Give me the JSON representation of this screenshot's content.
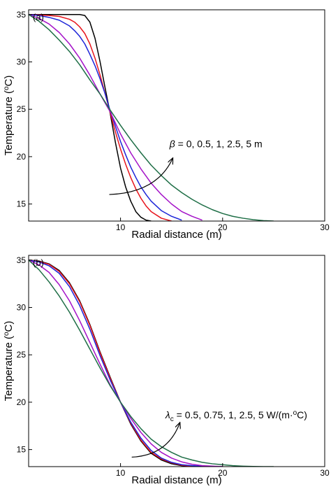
{
  "colors": {
    "black": "#000000",
    "red": "#e8141c",
    "blue": "#1c24d8",
    "magenta": "#a412c8",
    "green": "#1e6e46"
  },
  "chart_data": [
    {
      "type": "line",
      "panel_label": "(a)",
      "xlabel": "Radial distance (m)",
      "ylabel_main": "Temperature (",
      "ylabel_sup": "o",
      "ylabel_end": "C)",
      "xlim": [
        1,
        30
      ],
      "ylim": [
        13.2,
        35.5
      ],
      "xticks": [
        {
          "value": 10,
          "label": "10"
        },
        {
          "value": 20,
          "label": "20"
        },
        {
          "value": 30,
          "label": "30"
        }
      ],
      "yticks": [
        {
          "value": 15,
          "label": "15"
        },
        {
          "value": 20,
          "label": "20"
        },
        {
          "value": 25,
          "label": "25"
        },
        {
          "value": 30,
          "label": "30"
        },
        {
          "value": 35,
          "label": "35"
        }
      ],
      "grid": false,
      "annotation": {
        "symbol": "β",
        "text": " = 0, 0.5, 1, 2.5, 5 m",
        "x": 14.8,
        "y": 21.0,
        "arrow_from": [
          8.9,
          16.0
        ],
        "arrow_to": [
          15.1,
          19.8
        ]
      },
      "series": [
        {
          "color": "black",
          "x": [
            1,
            2,
            3,
            4,
            5,
            6,
            6.5,
            7,
            7.5,
            8,
            8.5,
            9,
            9.5,
            10,
            10.5,
            11,
            11.5,
            12,
            12.5,
            13
          ],
          "y": [
            35,
            35,
            35,
            35,
            35,
            35,
            34.9,
            34.2,
            32.5,
            30.0,
            27.2,
            24.5,
            21.5,
            18.8,
            16.8,
            15.3,
            14.2,
            13.6,
            13.3,
            13.2
          ]
        },
        {
          "color": "red",
          "x": [
            1,
            2,
            3,
            4,
            5,
            5.5,
            6,
            6.5,
            7,
            7.5,
            8,
            8.5,
            9,
            9.5,
            10,
            10.5,
            11,
            11.5,
            12,
            12.5,
            13,
            14,
            15
          ],
          "y": [
            35,
            34.95,
            34.9,
            34.8,
            34.5,
            34.2,
            33.7,
            33.0,
            31.9,
            30.4,
            28.6,
            26.6,
            24.6,
            22.6,
            20.8,
            19.2,
            17.8,
            16.6,
            15.6,
            14.8,
            14.2,
            13.5,
            13.2
          ]
        },
        {
          "color": "blue",
          "x": [
            1,
            2,
            3,
            4,
            5,
            5.5,
            6,
            6.5,
            7,
            7.5,
            8,
            8.5,
            9,
            9.5,
            10,
            10.5,
            11,
            11.5,
            12,
            12.5,
            13,
            14,
            15,
            16
          ],
          "y": [
            35,
            34.9,
            34.7,
            34.4,
            33.8,
            33.3,
            32.7,
            31.9,
            30.8,
            29.6,
            28.2,
            26.6,
            24.8,
            23.2,
            21.6,
            20.2,
            18.9,
            17.8,
            16.8,
            16.0,
            15.3,
            14.3,
            13.7,
            13.3
          ]
        },
        {
          "color": "magenta",
          "x": [
            1,
            2,
            3,
            4,
            5,
            6,
            7,
            8,
            9,
            10,
            11,
            12,
            13,
            14,
            15,
            16,
            17,
            18
          ],
          "y": [
            35,
            34.6,
            34.0,
            33.1,
            31.9,
            30.4,
            28.6,
            26.6,
            24.7,
            22.4,
            20.4,
            18.7,
            17.2,
            16.0,
            15.0,
            14.2,
            13.7,
            13.3
          ]
        },
        {
          "color": "green",
          "x": [
            1,
            2,
            3,
            4,
            5,
            6,
            7,
            8,
            9,
            10,
            11,
            12,
            13,
            14,
            15,
            16,
            17,
            18,
            19,
            20,
            21,
            22,
            23,
            24,
            25
          ],
          "y": [
            35,
            34.3,
            33.4,
            32.3,
            31.1,
            29.7,
            28.1,
            26.6,
            24.9,
            23.3,
            21.8,
            20.4,
            19.1,
            18.0,
            17.0,
            16.2,
            15.5,
            14.9,
            14.4,
            14.0,
            13.7,
            13.5,
            13.35,
            13.25,
            13.2
          ]
        }
      ]
    },
    {
      "type": "line",
      "panel_label": "(b)",
      "xlabel": "Radial distance (m)",
      "ylabel_main": "Temperature (",
      "ylabel_sup": "o",
      "ylabel_end": "C)",
      "xlim": [
        1,
        30
      ],
      "ylim": [
        13.2,
        35.5
      ],
      "xticks": [
        {
          "value": 10,
          "label": "10"
        },
        {
          "value": 20,
          "label": "20"
        },
        {
          "value": 30,
          "label": "30"
        }
      ],
      "yticks": [
        {
          "value": 15,
          "label": "15"
        },
        {
          "value": 20,
          "label": "20"
        },
        {
          "value": 25,
          "label": "25"
        },
        {
          "value": 30,
          "label": "30"
        },
        {
          "value": 35,
          "label": "35"
        }
      ],
      "grid": false,
      "annotation": {
        "symbol": "λ",
        "symbol_sub": "c",
        "text": " = 0.5, 0.75, 1, 2.5, 5 W/(m·",
        "text_sup": "o",
        "text_end": "C)",
        "x": 14.4,
        "y": 18.3,
        "arrow_from": [
          11.1,
          14.2
        ],
        "arrow_to": [
          15.8,
          17.8
        ]
      },
      "series": [
        {
          "color": "black",
          "x": [
            1,
            2,
            3,
            4,
            5,
            6,
            7,
            8,
            9,
            10,
            11,
            12,
            13,
            14,
            15,
            16,
            17,
            18,
            20
          ],
          "y": [
            35,
            34.9,
            34.6,
            33.9,
            32.6,
            30.7,
            28.2,
            25.3,
            22.6,
            20.0,
            17.7,
            15.9,
            14.6,
            13.9,
            13.5,
            13.3,
            13.25,
            13.2,
            13.2
          ]
        },
        {
          "color": "red",
          "x": [
            1,
            2,
            3,
            4,
            5,
            6,
            7,
            8,
            9,
            10,
            11,
            12,
            13,
            14,
            15,
            16,
            17,
            18,
            20
          ],
          "y": [
            35,
            34.85,
            34.55,
            33.8,
            32.5,
            30.6,
            28.1,
            25.2,
            22.5,
            20.0,
            17.8,
            16.0,
            14.7,
            14.0,
            13.6,
            13.35,
            13.25,
            13.2,
            13.2
          ]
        },
        {
          "color": "blue",
          "x": [
            1,
            2,
            3,
            4,
            5,
            6,
            7,
            8,
            9,
            10,
            11,
            12,
            13,
            14,
            15,
            16,
            17,
            18,
            20
          ],
          "y": [
            35,
            34.8,
            34.4,
            33.6,
            32.2,
            30.2,
            27.7,
            24.9,
            22.3,
            20.0,
            17.9,
            16.2,
            14.9,
            14.1,
            13.65,
            13.4,
            13.3,
            13.25,
            13.2
          ]
        },
        {
          "color": "magenta",
          "x": [
            1,
            2,
            3,
            4,
            5,
            6,
            7,
            8,
            9,
            10,
            11,
            12,
            13,
            14,
            15,
            16,
            17,
            18,
            20
          ],
          "y": [
            35,
            34.5,
            33.7,
            32.4,
            30.7,
            28.6,
            26.3,
            24.0,
            21.8,
            20.0,
            18.3,
            16.8,
            15.6,
            14.7,
            14.1,
            13.7,
            13.45,
            13.3,
            13.2
          ]
        },
        {
          "color": "green",
          "x": [
            1,
            2,
            3,
            4,
            5,
            6,
            7,
            8,
            9,
            10,
            11,
            12,
            13,
            14,
            15,
            16,
            17,
            18,
            19,
            20,
            21,
            22,
            23,
            24,
            25
          ],
          "y": [
            35,
            34.0,
            32.7,
            31.2,
            29.5,
            27.6,
            25.6,
            23.6,
            21.7,
            20.0,
            18.5,
            17.2,
            16.1,
            15.3,
            14.7,
            14.2,
            13.9,
            13.65,
            13.5,
            13.4,
            13.3,
            13.25,
            13.22,
            13.2,
            13.2
          ]
        }
      ]
    }
  ]
}
